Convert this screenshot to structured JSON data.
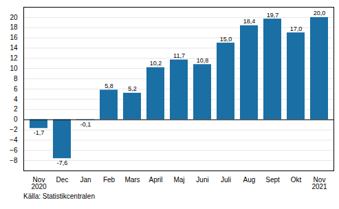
{
  "chart_data": {
    "type": "bar",
    "categories": [
      "Nov\n2020",
      "Dec",
      "Jan",
      "Feb",
      "Mars",
      "April",
      "Maj",
      "Juni",
      "Juli",
      "Aug",
      "Sept",
      "Okt",
      "Nov\n2021"
    ],
    "values": [
      -1.7,
      -7.6,
      -0.1,
      5.8,
      5.2,
      10.2,
      11.7,
      10.8,
      15.0,
      18.4,
      19.7,
      17.0,
      20.0
    ],
    "value_labels": [
      "-1,7",
      "-7,6",
      "-0,1",
      "5,8",
      "5,2",
      "10,2",
      "11,7",
      "10,8",
      "15,0",
      "18,4",
      "19,7",
      "17,0",
      "20,0"
    ],
    "data_labels": true,
    "color": "#1a6fa5",
    "ylim": [
      -10,
      22
    ],
    "yticks": [
      -8,
      -6,
      -4,
      -2,
      0,
      2,
      4,
      6,
      8,
      10,
      12,
      14,
      16,
      18,
      20
    ],
    "grid": true,
    "annotations": [
      "Källa: Statistikcentralen"
    ]
  }
}
